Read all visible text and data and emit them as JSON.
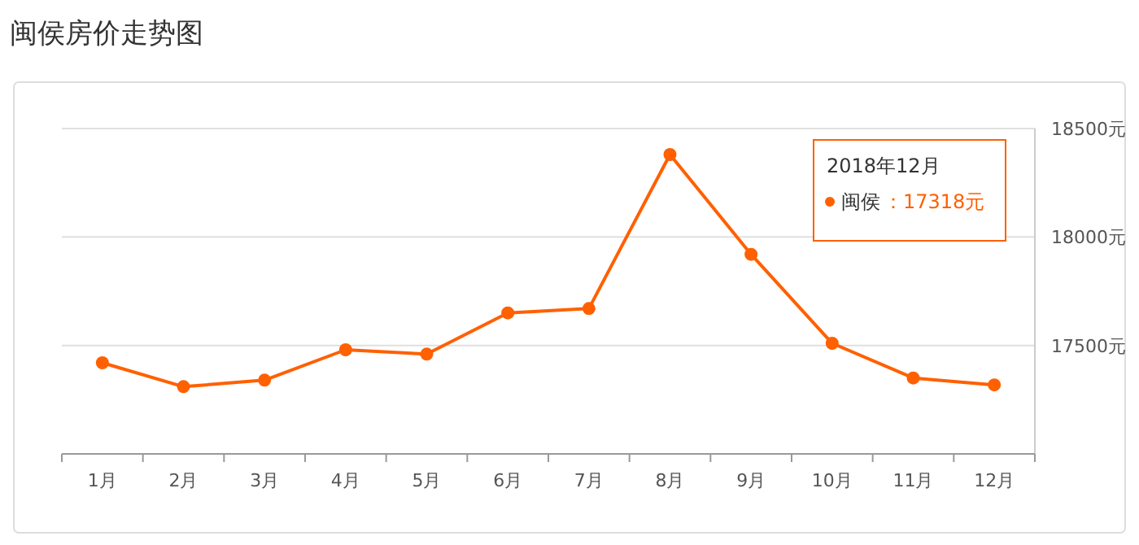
{
  "chart_data": {
    "type": "line",
    "title": "闽侯房价走势图",
    "categories": [
      "1月",
      "2月",
      "3月",
      "4月",
      "5月",
      "6月",
      "7月",
      "8月",
      "9月",
      "10月",
      "11月",
      "12月"
    ],
    "series": [
      {
        "name": "闽侯",
        "color": "#ff6000",
        "values": [
          17420,
          17310,
          17340,
          17480,
          17460,
          17650,
          17670,
          18380,
          17920,
          17510,
          17350,
          17318
        ]
      }
    ],
    "ylim": [
      17000,
      18500
    ],
    "yticks": [
      {
        "value": 17500,
        "label": "17500元"
      },
      {
        "value": 18000,
        "label": "18000元"
      },
      {
        "value": 18500,
        "label": "18500元"
      }
    ],
    "grid": "y",
    "marker": "circle",
    "line_style": "solid",
    "annotations": [
      "2018年12月",
      "：17318元"
    ]
  }
}
